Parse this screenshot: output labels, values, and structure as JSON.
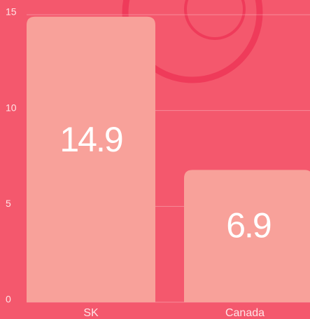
{
  "chart_data": {
    "type": "bar",
    "categories": [
      "SK",
      "Canada"
    ],
    "values": [
      14.9,
      6.9
    ],
    "color": "#f8a19a",
    "ylim": [
      0,
      15
    ],
    "yticks": [
      0,
      5,
      10,
      15
    ],
    "grid": true
  }
}
